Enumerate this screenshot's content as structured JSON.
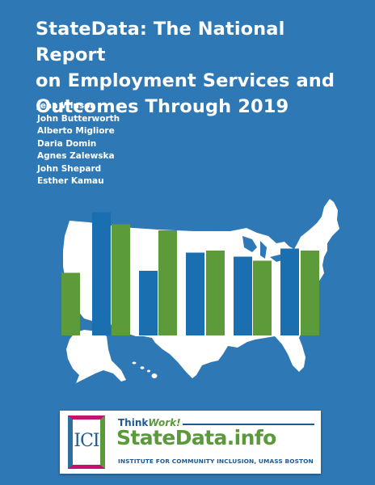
{
  "title_lines": [
    "StateData: The National Report",
    "on Employment Services and",
    "Outcomes Through 2019"
  ],
  "authors": [
    "Jean Winsor",
    "John Butterworth",
    "Alberto Migliore",
    "Daria Domin",
    "Agnes Zalewska",
    "John Shepard",
    "Esther Kamau"
  ],
  "illustration": {
    "description_icon": "us-map-icon",
    "bar_colors": {
      "blue": "#1a6fb0",
      "green": "#5c9a3a"
    },
    "bars": [
      {
        "color": "green",
        "value": 0.31
      },
      {
        "color": "blue",
        "value": 0.61
      },
      {
        "color": "green",
        "value": 0.55
      },
      {
        "color": "blue",
        "value": 0.32
      },
      {
        "color": "green",
        "value": 0.52
      },
      {
        "color": "blue",
        "value": 0.41
      },
      {
        "color": "green",
        "value": 0.42
      },
      {
        "color": "blue",
        "value": 0.39
      },
      {
        "color": "green",
        "value": 0.37
      },
      {
        "color": "blue",
        "value": 0.43
      },
      {
        "color": "green",
        "value": 0.42
      }
    ]
  },
  "logo": {
    "icon": "ici-logo-icon",
    "ici_text": "ICI",
    "thinkwork_a": "Think",
    "thinkwork_b": "Work!",
    "statedata": "StateData.info",
    "institute": "INSTITUTE FOR COMMUNITY INCLUSION, UMASS BOSTON",
    "colors": {
      "blue": "#1e5a8e",
      "green": "#5a9a3a",
      "magenta": "#c4126e"
    }
  },
  "background_color": "#2e78b6"
}
